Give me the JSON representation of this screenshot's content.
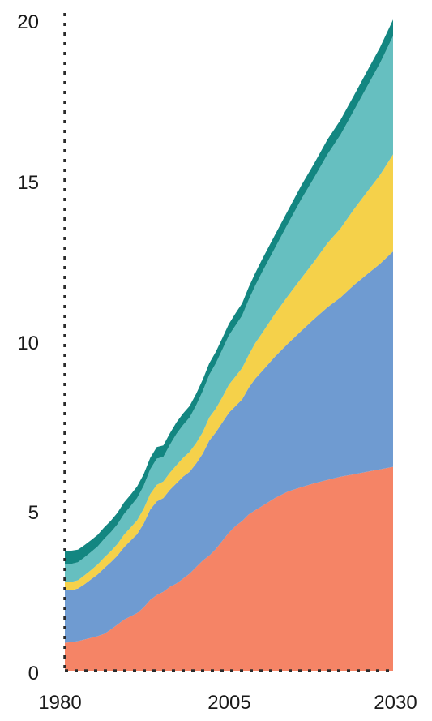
{
  "chart_data": {
    "type": "area",
    "stacked": true,
    "title": "",
    "xlabel": "",
    "ylabel": "",
    "xlim": [
      1980,
      2030
    ],
    "ylim": [
      0,
      20
    ],
    "x_ticks": [
      "1980",
      "2005",
      "2030"
    ],
    "y_ticks": [
      "0",
      "5",
      "10",
      "15",
      "20"
    ],
    "grid": false,
    "legend": "none",
    "x": [
      1980,
      1981,
      1982,
      1983,
      1984,
      1985,
      1986,
      1987,
      1988,
      1989,
      1990,
      1991,
      1992,
      1993,
      1994,
      1995,
      1996,
      1997,
      1998,
      1999,
      2000,
      2001,
      2002,
      2003,
      2004,
      2005,
      2006,
      2007,
      2008,
      2009,
      2010,
      2012,
      2014,
      2016,
      2018,
      2020,
      2022,
      2024,
      2026,
      2028,
      2030
    ],
    "series": [
      {
        "color": "#f58466",
        "values": [
          0.85,
          0.87,
          0.9,
          0.95,
          1.0,
          1.05,
          1.12,
          1.25,
          1.4,
          1.55,
          1.65,
          1.75,
          1.92,
          2.15,
          2.3,
          2.4,
          2.55,
          2.65,
          2.8,
          2.95,
          3.15,
          3.35,
          3.5,
          3.7,
          3.95,
          4.2,
          4.4,
          4.55,
          4.75,
          4.88,
          5.0,
          5.25,
          5.45,
          5.58,
          5.7,
          5.8,
          5.9,
          5.97,
          6.05,
          6.12,
          6.2
        ]
      },
      {
        "color": "#6f9bd1",
        "values": [
          1.6,
          1.58,
          1.6,
          1.68,
          1.78,
          1.88,
          2.0,
          2.05,
          2.1,
          2.2,
          2.3,
          2.4,
          2.55,
          2.75,
          2.85,
          2.85,
          2.95,
          3.05,
          3.1,
          3.1,
          3.15,
          3.25,
          3.5,
          3.55,
          3.6,
          3.65,
          3.65,
          3.7,
          3.85,
          4.0,
          4.1,
          4.3,
          4.5,
          4.75,
          5.0,
          5.25,
          5.45,
          5.75,
          6.0,
          6.25,
          6.55
        ]
      },
      {
        "color": "#f5d14a",
        "values": [
          0.25,
          0.25,
          0.25,
          0.27,
          0.28,
          0.3,
          0.32,
          0.33,
          0.35,
          0.38,
          0.4,
          0.42,
          0.45,
          0.47,
          0.5,
          0.5,
          0.52,
          0.55,
          0.57,
          0.6,
          0.62,
          0.65,
          0.7,
          0.72,
          0.77,
          0.85,
          0.9,
          0.95,
          1.0,
          1.08,
          1.15,
          1.3,
          1.45,
          1.6,
          1.75,
          1.95,
          2.1,
          2.3,
          2.5,
          2.7,
          2.95
        ]
      },
      {
        "color": "#66bfc0",
        "values": [
          0.55,
          0.55,
          0.55,
          0.55,
          0.55,
          0.55,
          0.57,
          0.58,
          0.6,
          0.63,
          0.65,
          0.68,
          0.7,
          0.75,
          0.8,
          0.75,
          0.85,
          0.95,
          1.0,
          1.05,
          1.15,
          1.25,
          1.3,
          1.38,
          1.45,
          1.5,
          1.55,
          1.6,
          1.68,
          1.75,
          1.85,
          2.0,
          2.2,
          2.4,
          2.55,
          2.7,
          2.85,
          3.0,
          3.2,
          3.4,
          3.6
        ]
      },
      {
        "color": "#138681",
        "values": [
          0.4,
          0.4,
          0.38,
          0.37,
          0.36,
          0.35,
          0.35,
          0.35,
          0.35,
          0.35,
          0.35,
          0.35,
          0.35,
          0.35,
          0.35,
          0.35,
          0.35,
          0.35,
          0.35,
          0.35,
          0.35,
          0.35,
          0.35,
          0.35,
          0.35,
          0.35,
          0.37,
          0.37,
          0.38,
          0.38,
          0.39,
          0.4,
          0.4,
          0.42,
          0.43,
          0.45,
          0.45,
          0.46,
          0.47,
          0.48,
          0.5
        ]
      }
    ]
  }
}
